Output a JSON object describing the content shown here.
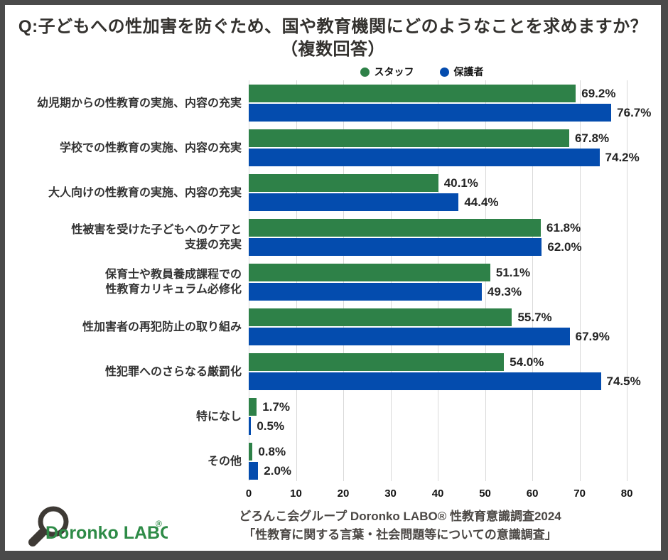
{
  "title": {
    "line1": "Q:子どもへの性加害を防ぐため、国や教育機関にどのようなことを求めますか？",
    "line2": "（複数回答）"
  },
  "colors": {
    "staff_green": "#2e8148",
    "parent_blue": "#044cae",
    "frame_gray": "#4a4a4a",
    "gridline_gray": "#d9d9d9",
    "logo_green": "#2e8b47",
    "logo_glass_dark": "#3e3a35"
  },
  "chart_data": {
    "type": "bar",
    "orientation": "horizontal",
    "title": "Q:子どもへの性加害を防ぐため、国や教育機関にどのようなことを求めますか？（複数回答）",
    "categories": [
      "幼児期からの性教育の実施、内容の充実",
      "学校での性教育の実施、内容の充実",
      "大人向けの性教育の実施、内容の充実",
      "性被害を受けた子どもへのケアと\n支援の充実",
      "保育士や教員養成課程での\n性教育カリキュラム必修化",
      "性加害者の再犯防止の取り組み",
      "性犯罪へのさらなる厳罰化",
      "特になし",
      "その他"
    ],
    "series": [
      {
        "name": "スタッフ",
        "color": "#2e8148",
        "values": [
          69.2,
          67.8,
          40.1,
          61.8,
          51.1,
          55.7,
          54.0,
          1.7,
          0.8
        ]
      },
      {
        "name": "保護者",
        "color": "#044cae",
        "values": [
          76.7,
          74.2,
          44.4,
          62.0,
          49.3,
          67.9,
          74.5,
          0.5,
          2.0
        ]
      }
    ],
    "value_suffix": "%",
    "x_ticks": [
      0,
      10,
      20,
      30,
      40,
      50,
      60,
      70,
      80
    ],
    "xlim": [
      0,
      87.2
    ],
    "grid": true,
    "legend_position": "top-center"
  },
  "footer": {
    "logo_text": "Doronko LABO",
    "logo_reg": "®",
    "line1": "どろんこ会グループ Doronko LABO® 性教育意識調査2024",
    "line2": "「性教育に関する言葉・社会問題等についての意識調査」"
  }
}
